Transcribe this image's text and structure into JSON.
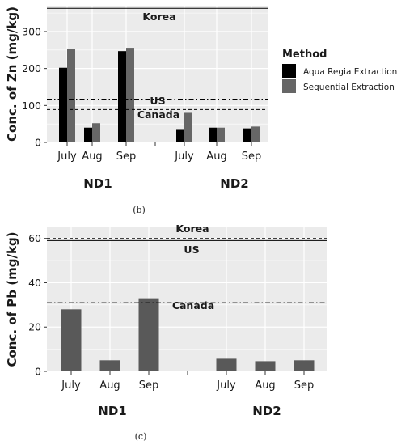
{
  "chart_data": [
    {
      "type": "bar",
      "panel_caption": "(b)",
      "ylabel": "Conc. of Zn (mg/kg)",
      "ylim": [
        0,
        370
      ],
      "yticks": [
        0,
        100,
        200,
        300
      ],
      "grid": true,
      "groups": [
        "ND1",
        "ND2"
      ],
      "categories": [
        "July",
        "Aug",
        "Sep"
      ],
      "legend": {
        "title": "Method",
        "placement": "right"
      },
      "series": [
        {
          "name": "Aqua Regia Extraction",
          "color": "#000000",
          "values": [
            [
              202,
              40,
              247
            ],
            [
              34,
              40,
              38
            ]
          ]
        },
        {
          "name": "Sequential Extraction",
          "color": "#666666",
          "values": [
            [
              253,
              52,
              256
            ],
            [
              80,
              40,
              43
            ]
          ]
        }
      ],
      "reference_lines": [
        {
          "label": "Korea",
          "value": 363,
          "style": "solid"
        },
        {
          "label": "US",
          "value": 117,
          "style": "dashdot"
        },
        {
          "label": "Canada",
          "value": 89,
          "style": "dashed"
        }
      ]
    },
    {
      "type": "bar",
      "panel_caption": "(c)",
      "ylabel": "Conc. of Pb (mg/kg)",
      "ylim": [
        0,
        65
      ],
      "yticks": [
        0,
        20,
        40,
        60
      ],
      "grid": true,
      "groups": [
        "ND1",
        "ND2"
      ],
      "categories": [
        "July",
        "Aug",
        "Sep"
      ],
      "series": [
        {
          "color": "#595959",
          "values": [
            [
              28,
              5,
              33
            ],
            [
              5.7,
              4.6,
              5
            ]
          ]
        }
      ],
      "reference_lines": [
        {
          "label": "Korea",
          "value": 60,
          "style": "dashed"
        },
        {
          "label": "US",
          "value": 59,
          "style": "solid"
        },
        {
          "label": "Canada",
          "value": 31,
          "style": "dashdot"
        }
      ]
    }
  ]
}
